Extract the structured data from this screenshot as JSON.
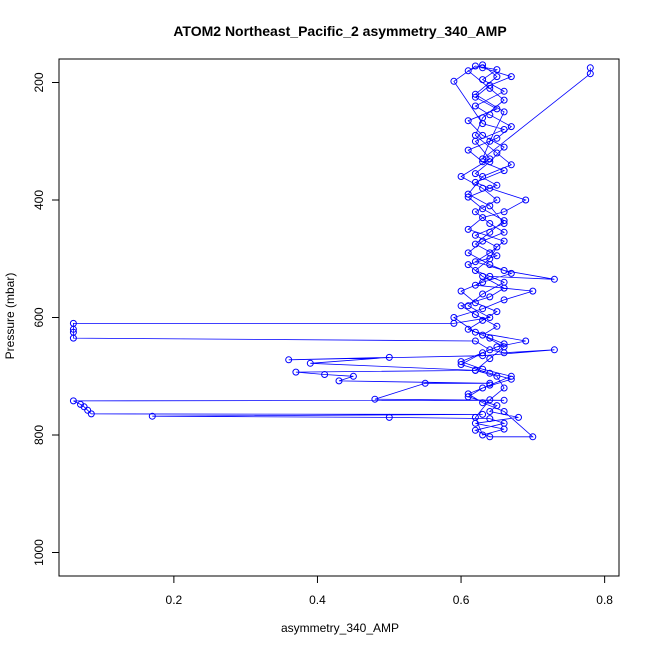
{
  "chart_data": {
    "type": "scatter",
    "title": "ATOM2 Northeast_Pacific_2 asymmetry_340_AMP",
    "xlabel": "asymmetry_340_AMP",
    "ylabel": "Pressure (mbar)",
    "xlim": [
      0.04,
      0.82
    ],
    "ylim": [
      1040,
      160
    ],
    "y_reversed": true,
    "x_ticks": [
      "0.2",
      "0.4",
      "0.6",
      "0.8"
    ],
    "y_ticks": [
      "200",
      "400",
      "600",
      "800",
      "1000"
    ],
    "marker": "open-circle",
    "connected": true,
    "series_color": "#0000ff",
    "grid": false,
    "series": [
      {
        "points": [
          [
            0.78,
            175
          ],
          [
            0.78,
            185
          ],
          [
            0.63,
            330
          ],
          [
            0.64,
            300
          ],
          [
            0.66,
            250
          ],
          [
            0.62,
            220
          ],
          [
            0.65,
            190
          ],
          [
            0.63,
            170
          ],
          [
            0.61,
            180
          ],
          [
            0.64,
            210
          ],
          [
            0.66,
            230
          ],
          [
            0.63,
            260
          ],
          [
            0.62,
            290
          ],
          [
            0.65,
            320
          ],
          [
            0.67,
            340
          ],
          [
            0.63,
            360
          ],
          [
            0.61,
            390
          ],
          [
            0.64,
            410
          ],
          [
            0.66,
            440
          ],
          [
            0.62,
            460
          ],
          [
            0.65,
            480
          ],
          [
            0.64,
            500
          ],
          [
            0.62,
            520
          ],
          [
            0.66,
            540
          ],
          [
            0.63,
            560
          ],
          [
            0.61,
            580
          ],
          [
            0.64,
            600
          ],
          [
            0.59,
            610
          ],
          [
            0.06,
            610
          ],
          [
            0.06,
            620
          ],
          [
            0.06,
            625
          ],
          [
            0.06,
            635
          ],
          [
            0.62,
            640
          ],
          [
            0.64,
            655
          ],
          [
            0.66,
            660
          ],
          [
            0.73,
            655
          ],
          [
            0.63,
            665
          ],
          [
            0.36,
            672
          ],
          [
            0.5,
            668
          ],
          [
            0.39,
            678
          ],
          [
            0.62,
            690
          ],
          [
            0.37,
            693
          ],
          [
            0.41,
            697
          ],
          [
            0.45,
            700
          ],
          [
            0.43,
            708
          ],
          [
            0.64,
            712
          ],
          [
            0.55,
            712
          ],
          [
            0.48,
            739
          ],
          [
            0.66,
            741
          ],
          [
            0.06,
            742
          ],
          [
            0.07,
            748
          ],
          [
            0.075,
            752
          ],
          [
            0.08,
            758
          ],
          [
            0.085,
            764
          ],
          [
            0.63,
            765
          ],
          [
            0.17,
            768
          ],
          [
            0.5,
            770
          ],
          [
            0.64,
            772
          ],
          [
            0.66,
            780
          ],
          [
            0.62,
            792
          ],
          [
            0.64,
            803
          ],
          [
            0.7,
            803
          ],
          [
            0.66,
            760
          ],
          [
            0.63,
            745
          ],
          [
            0.61,
            730
          ],
          [
            0.64,
            715
          ],
          [
            0.67,
            700
          ],
          [
            0.63,
            688
          ],
          [
            0.6,
            675
          ],
          [
            0.65,
            650
          ],
          [
            0.69,
            640
          ],
          [
            0.62,
            625
          ],
          [
            0.59,
            600
          ],
          [
            0.63,
            585
          ],
          [
            0.66,
            570
          ],
          [
            0.7,
            555
          ],
          [
            0.62,
            545
          ],
          [
            0.64,
            530
          ],
          [
            0.73,
            535
          ],
          [
            0.66,
            520
          ],
          [
            0.62,
            505
          ],
          [
            0.64,
            490
          ],
          [
            0.66,
            470
          ],
          [
            0.61,
            450
          ],
          [
            0.63,
            430
          ],
          [
            0.66,
            420
          ],
          [
            0.69,
            400
          ],
          [
            0.64,
            380
          ],
          [
            0.62,
            370
          ],
          [
            0.66,
            350
          ],
          [
            0.63,
            335
          ],
          [
            0.61,
            315
          ],
          [
            0.65,
            295
          ],
          [
            0.67,
            275
          ],
          [
            0.64,
            255
          ],
          [
            0.62,
            240
          ],
          [
            0.66,
            215
          ],
          [
            0.63,
            195
          ],
          [
            0.65,
            178
          ],
          [
            0.62,
            172
          ],
          [
            0.59,
            198
          ],
          [
            0.63,
            270
          ],
          [
            0.66,
            280
          ],
          [
            0.62,
            300
          ],
          [
            0.64,
            330
          ],
          [
            0.6,
            360
          ],
          [
            0.63,
            380
          ],
          [
            0.65,
            400
          ],
          [
            0.62,
            420
          ],
          [
            0.64,
            440
          ],
          [
            0.66,
            455
          ],
          [
            0.63,
            470
          ],
          [
            0.61,
            490
          ],
          [
            0.64,
            510
          ],
          [
            0.67,
            525
          ],
          [
            0.63,
            540
          ],
          [
            0.6,
            555
          ],
          [
            0.62,
            575
          ],
          [
            0.65,
            590
          ],
          [
            0.63,
            605
          ],
          [
            0.61,
            620
          ],
          [
            0.64,
            635
          ],
          [
            0.66,
            645
          ],
          [
            0.63,
            660
          ],
          [
            0.6,
            680
          ],
          [
            0.64,
            695
          ],
          [
            0.67,
            705
          ],
          [
            0.63,
            720
          ],
          [
            0.61,
            735
          ],
          [
            0.65,
            750
          ],
          [
            0.64,
            760
          ],
          [
            0.68,
            770
          ],
          [
            0.62,
            780
          ],
          [
            0.66,
            790
          ],
          [
            0.63,
            800
          ],
          [
            0.62,
            770
          ],
          [
            0.64,
            740
          ],
          [
            0.66,
            720
          ],
          [
            0.65,
            700
          ],
          [
            0.62,
            690
          ],
          [
            0.64,
            670
          ],
          [
            0.66,
            650
          ],
          [
            0.63,
            630
          ],
          [
            0.65,
            615
          ],
          [
            0.62,
            595
          ],
          [
            0.6,
            580
          ],
          [
            0.64,
            565
          ],
          [
            0.66,
            550
          ],
          [
            0.63,
            530
          ],
          [
            0.61,
            510
          ],
          [
            0.65,
            495
          ],
          [
            0.62,
            475
          ],
          [
            0.64,
            455
          ],
          [
            0.66,
            435
          ],
          [
            0.63,
            415
          ],
          [
            0.61,
            395
          ],
          [
            0.65,
            375
          ],
          [
            0.62,
            355
          ],
          [
            0.64,
            335
          ],
          [
            0.66,
            310
          ],
          [
            0.63,
            290
          ],
          [
            0.61,
            265
          ],
          [
            0.65,
            245
          ],
          [
            0.62,
            225
          ],
          [
            0.64,
            205
          ],
          [
            0.67,
            190
          ],
          [
            0.63,
            175
          ]
        ]
      }
    ]
  }
}
